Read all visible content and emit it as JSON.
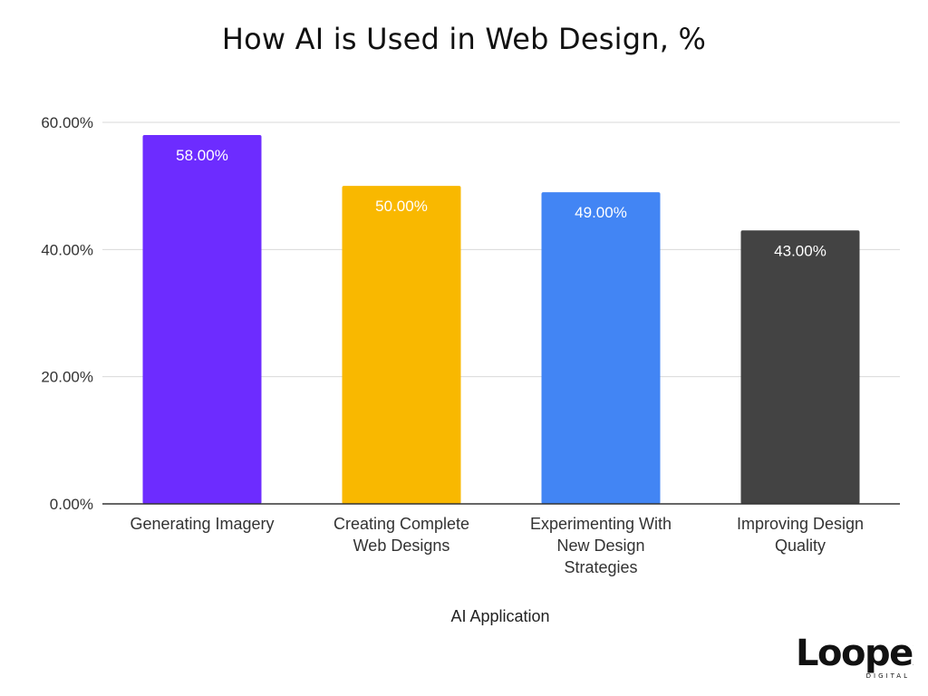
{
  "chart_data": {
    "type": "bar",
    "title": "How AI is Used in Web Design, %",
    "xlabel": "AI Application",
    "ylabel": "",
    "categories": [
      [
        "Generating Imagery"
      ],
      [
        "Creating Complete",
        "Web Designs"
      ],
      [
        "Experimenting With",
        "New Design",
        "Strategies"
      ],
      [
        "Improving Design",
        "Quality"
      ]
    ],
    "values": [
      58,
      50,
      49,
      43
    ],
    "data_labels": [
      "58.00%",
      "50.00%",
      "49.00%",
      "43.00%"
    ],
    "bar_colors": [
      "#6D2CFF",
      "#F9B800",
      "#4285F4",
      "#434343"
    ],
    "ylim": [
      0,
      60
    ],
    "yticks": [
      0,
      20,
      40,
      60
    ],
    "ytick_labels": [
      "0.00%",
      "20.00%",
      "40.00%",
      "60.00%"
    ],
    "grid": true,
    "legend": "none"
  },
  "brand": {
    "name": "Loopex",
    "tagline": "DIGITAL"
  }
}
